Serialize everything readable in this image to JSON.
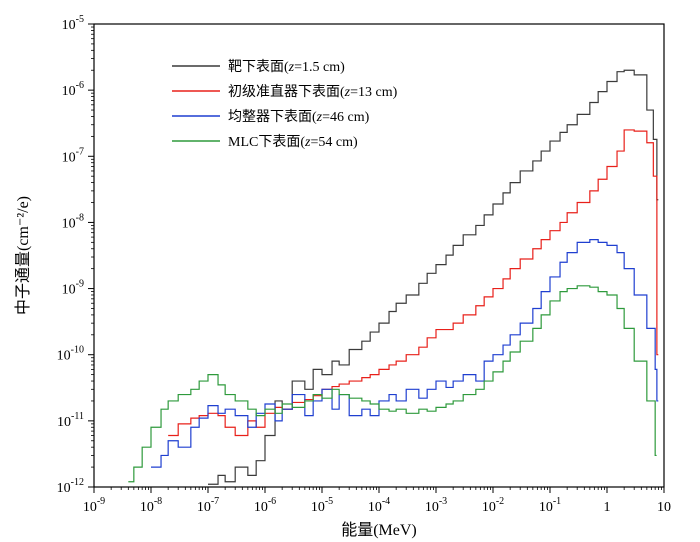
{
  "chart_data": {
    "type": "line",
    "step": true,
    "xscale": "log",
    "yscale": "log",
    "xlim": [
      1e-09,
      10
    ],
    "ylim": [
      1e-12,
      1e-05
    ],
    "xlabel": "能量(MeV)",
    "ylabel": "中子通量(cm⁻²/e)",
    "x_ticks": [
      {
        "v": 1e-09,
        "base": "10",
        "exp": "-9"
      },
      {
        "v": 1e-08,
        "base": "10",
        "exp": "-8"
      },
      {
        "v": 1e-07,
        "base": "10",
        "exp": "-7"
      },
      {
        "v": 1e-06,
        "base": "10",
        "exp": "-6"
      },
      {
        "v": 1e-05,
        "base": "10",
        "exp": "-5"
      },
      {
        "v": 0.0001,
        "base": "10",
        "exp": "-4"
      },
      {
        "v": 0.001,
        "base": "10",
        "exp": "-3"
      },
      {
        "v": 0.01,
        "base": "10",
        "exp": "-2"
      },
      {
        "v": 0.1,
        "base": "10",
        "exp": "-1"
      },
      {
        "v": 1,
        "base": "1",
        "exp": ""
      },
      {
        "v": 10,
        "base": "10",
        "exp": ""
      }
    ],
    "y_ticks": [
      {
        "v": 1e-12,
        "base": "10",
        "exp": "-12"
      },
      {
        "v": 1e-11,
        "base": "10",
        "exp": "-11"
      },
      {
        "v": 1e-10,
        "base": "10",
        "exp": "-10"
      },
      {
        "v": 1e-09,
        "base": "10",
        "exp": "-9"
      },
      {
        "v": 1e-08,
        "base": "10",
        "exp": "-8"
      },
      {
        "v": 1e-07,
        "base": "10",
        "exp": "-7"
      },
      {
        "v": 1e-06,
        "base": "10",
        "exp": "-6"
      },
      {
        "v": 1e-05,
        "base": "10",
        "exp": "-5"
      }
    ],
    "legend_position": "top-left",
    "series": [
      {
        "name": "靶下表面(z=1.5 cm)",
        "name_parts": [
          "靶下表面(",
          "z",
          "=1.5 cm)"
        ],
        "color": "#3a3a3a",
        "x": [
          1e-07,
          1.5e-07,
          2e-07,
          3e-07,
          5e-07,
          7e-07,
          1e-06,
          1.5e-06,
          2e-06,
          3e-06,
          5e-06,
          7e-06,
          1e-05,
          1.5e-05,
          2e-05,
          3e-05,
          5e-05,
          7e-05,
          0.0001,
          0.00015,
          0.0002,
          0.0003,
          0.0005,
          0.0007,
          0.001,
          0.0015,
          0.002,
          0.003,
          0.005,
          0.007,
          0.01,
          0.015,
          0.02,
          0.03,
          0.05,
          0.07,
          0.1,
          0.15,
          0.2,
          0.3,
          0.5,
          0.7,
          1.0,
          1.5,
          2.0,
          3.0,
          5.0,
          6.5,
          7.5
        ],
        "y": [
          1.1e-12,
          1.5e-12,
          1.2e-12,
          2e-12,
          1.5e-12,
          2.5e-12,
          6e-12,
          2e-11,
          1.5e-11,
          4e-11,
          3e-11,
          6e-11,
          5e-11,
          8e-11,
          7e-11,
          1.2e-10,
          1.6e-10,
          2.2e-10,
          3e-10,
          4.5e-10,
          6e-10,
          8e-10,
          1.2e-09,
          1.7e-09,
          2.3e-09,
          3.2e-09,
          4.5e-09,
          6.5e-09,
          9e-09,
          1.3e-08,
          1.9e-08,
          2.8e-08,
          4e-08,
          6e-08,
          8.5e-08,
          1.2e-07,
          1.7e-07,
          2.3e-07,
          3e-07,
          4.3e-07,
          6.5e-07,
          9.5e-07,
          1.35e-06,
          1.9e-06,
          2e-06,
          1.7e-06,
          5e-07,
          1.8e-07,
          2.2e-08
        ]
      },
      {
        "name": "初级准直器下表面(z=13 cm)",
        "name_parts": [
          "初级准直器下表面(",
          "z",
          "=13 cm)"
        ],
        "color": "#e8201a",
        "x": [
          2e-08,
          3e-08,
          5e-08,
          7e-08,
          1e-07,
          1.5e-07,
          2e-07,
          3e-07,
          5e-07,
          7e-07,
          1e-06,
          1.5e-06,
          2e-06,
          3e-06,
          5e-06,
          7e-06,
          1e-05,
          1.5e-05,
          2e-05,
          3e-05,
          5e-05,
          7e-05,
          0.0001,
          0.00015,
          0.0002,
          0.0003,
          0.0005,
          0.0007,
          0.001,
          0.002,
          0.003,
          0.005,
          0.007,
          0.01,
          0.015,
          0.02,
          0.03,
          0.05,
          0.07,
          0.1,
          0.15,
          0.2,
          0.3,
          0.5,
          0.7,
          1.0,
          1.5,
          2.0,
          3.0,
          5.0,
          6.5,
          7.5
        ],
        "y": [
          6e-12,
          9e-12,
          1.1e-11,
          1.2e-11,
          1.3e-11,
          1.2e-11,
          8e-12,
          6e-12,
          1e-11,
          8e-12,
          1.3e-11,
          1.6e-11,
          1.5e-11,
          1.9e-11,
          2.1e-11,
          2.4e-11,
          3e-11,
          3.3e-11,
          3.6e-11,
          4e-11,
          4.5e-11,
          5e-11,
          6e-11,
          7e-11,
          8e-11,
          1e-10,
          1.3e-10,
          1.8e-10,
          2.4e-10,
          3e-10,
          4e-10,
          5.5e-10,
          7.5e-10,
          1e-09,
          1.4e-09,
          2e-09,
          2.8e-09,
          4e-09,
          5.5e-09,
          7.5e-09,
          1e-08,
          1.4e-08,
          2e-08,
          3e-08,
          4.5e-08,
          7e-08,
          1.2e-07,
          2.5e-07,
          2.4e-07,
          1.6e-07,
          5e-08,
          1e-10
        ]
      },
      {
        "name": "均整器下表面(z=46 cm)",
        "name_parts": [
          "均整器下表面(",
          "z",
          "=46 cm)"
        ],
        "color": "#1f3fd0",
        "x": [
          1e-08,
          1.5e-08,
          2e-08,
          3e-08,
          5e-08,
          7e-08,
          1e-07,
          1.5e-07,
          2e-07,
          3e-07,
          5e-07,
          7e-07,
          1e-06,
          1.5e-06,
          2e-06,
          3e-06,
          5e-06,
          7e-06,
          1e-05,
          1.5e-05,
          2e-05,
          3e-05,
          5e-05,
          7e-05,
          0.0001,
          0.00015,
          0.0002,
          0.0003,
          0.0005,
          0.0007,
          0.001,
          0.0015,
          0.002,
          0.003,
          0.005,
          0.007,
          0.01,
          0.015,
          0.02,
          0.03,
          0.05,
          0.07,
          0.1,
          0.15,
          0.2,
          0.3,
          0.5,
          0.7,
          1.0,
          1.5,
          2.0,
          3.0,
          5.0,
          7.0,
          7.5
        ],
        "y": [
          2e-12,
          3e-12,
          5e-12,
          4e-12,
          8e-12,
          1.1e-11,
          1.7e-11,
          1.3e-11,
          1.5e-11,
          1.2e-11,
          8e-12,
          1.3e-11,
          1.8e-11,
          1e-11,
          1.5e-11,
          2.5e-11,
          1.2e-11,
          2e-11,
          3e-11,
          1.5e-11,
          2.5e-11,
          1.2e-11,
          1.5e-11,
          1.2e-11,
          2e-11,
          2.5e-11,
          2e-11,
          3e-11,
          2.2e-11,
          3e-11,
          4e-11,
          3.2e-11,
          4e-11,
          5e-11,
          4e-11,
          8e-11,
          1e-10,
          1.4e-10,
          2e-10,
          3e-10,
          5e-10,
          9e-10,
          1.5e-09,
          2.5e-09,
          3.5e-09,
          5e-09,
          5.5e-09,
          5e-09,
          4.5e-09,
          3.5e-09,
          2e-09,
          8e-10,
          2.5e-10,
          6e-11,
          2e-11
        ]
      },
      {
        "name": "MLC下表面(z=54 cm)",
        "name_parts": [
          "MLC下表面(",
          "z",
          "=54 cm)"
        ],
        "color": "#2e9a3c",
        "x": [
          4e-09,
          5e-09,
          7e-09,
          1e-08,
          1.5e-08,
          2e-08,
          3e-08,
          5e-08,
          7e-08,
          1e-07,
          1.5e-07,
          2e-07,
          3e-07,
          5e-07,
          7e-07,
          1e-06,
          1.5e-06,
          2e-06,
          3e-06,
          5e-06,
          7e-06,
          1e-05,
          1.5e-05,
          2e-05,
          3e-05,
          5e-05,
          7e-05,
          0.0001,
          0.00015,
          0.0002,
          0.0003,
          0.0005,
          0.0007,
          0.001,
          0.0015,
          0.002,
          0.003,
          0.005,
          0.007,
          0.01,
          0.015,
          0.02,
          0.03,
          0.05,
          0.07,
          0.1,
          0.15,
          0.2,
          0.3,
          0.5,
          0.7,
          1.0,
          1.5,
          2.0,
          3.0,
          5.0,
          7.0
        ],
        "y": [
          1.2e-12,
          2e-12,
          4e-12,
          8e-12,
          1.5e-11,
          2e-11,
          2.5e-11,
          3e-11,
          4e-11,
          5e-11,
          3.5e-11,
          2.5e-11,
          2e-11,
          1.5e-11,
          1.2e-11,
          1.5e-11,
          1.3e-11,
          1.8e-11,
          1.6e-11,
          2e-11,
          2.5e-11,
          2.2e-11,
          3e-11,
          2.5e-11,
          2.2e-11,
          2e-11,
          1.8e-11,
          1.5e-11,
          1.4e-11,
          1.5e-11,
          1.3e-11,
          1.5e-11,
          1.4e-11,
          1.6e-11,
          1.8e-11,
          2e-11,
          2.5e-11,
          3e-11,
          4e-11,
          5.5e-11,
          8e-11,
          1.1e-10,
          1.6e-10,
          2.5e-10,
          4e-10,
          6.5e-10,
          9e-10,
          1e-09,
          1.1e-09,
          1.05e-09,
          9e-10,
          8e-10,
          5e-10,
          2.5e-10,
          8e-11,
          2e-11,
          3e-12
        ]
      }
    ]
  }
}
